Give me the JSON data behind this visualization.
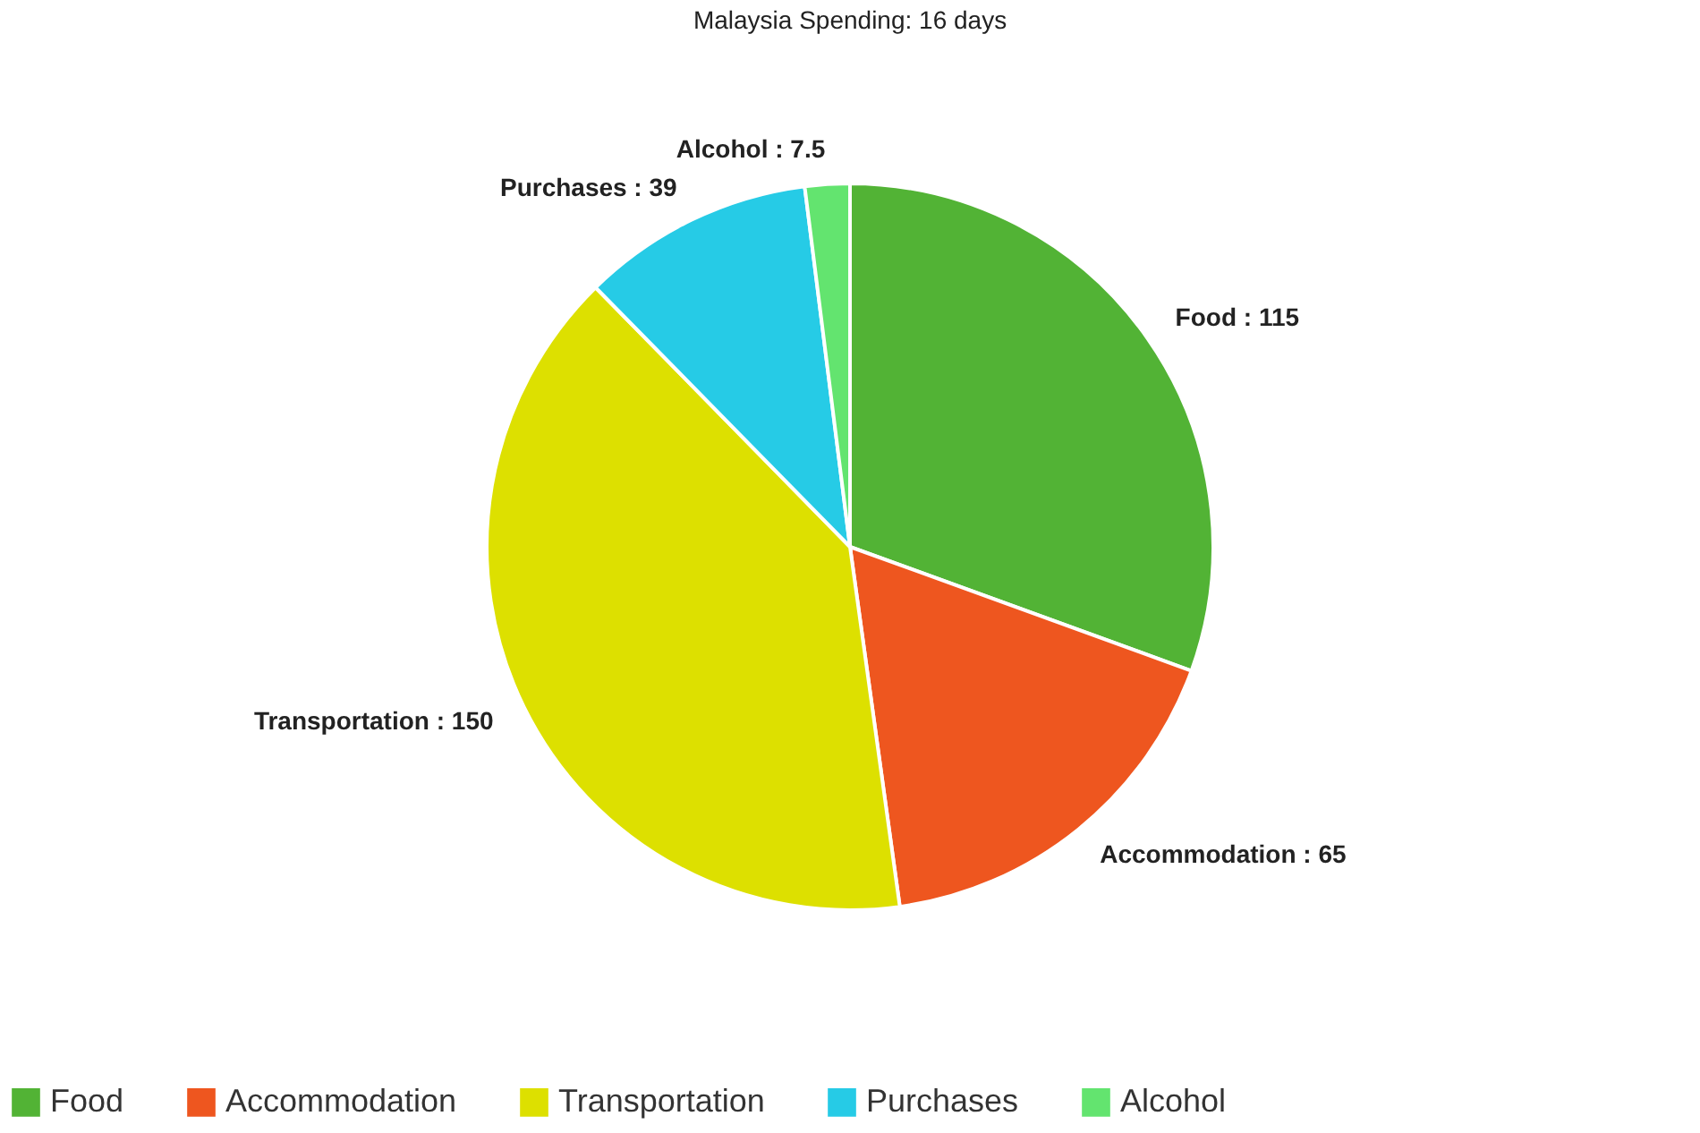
{
  "chart_data": {
    "type": "pie",
    "title": "Malaysia Spending: 16 days",
    "categories": [
      "Food",
      "Accommodation",
      "Transportation",
      "Purchases",
      "Alcohol"
    ],
    "values": [
      115,
      65,
      150,
      39,
      7.5
    ],
    "value_labels": [
      ": 115",
      ": 65",
      ": 150",
      ": 39",
      ": 7.5"
    ],
    "colors": [
      "#52b335",
      "#ee561f",
      "#dde000",
      "#26cbe6",
      "#63e46f"
    ],
    "legend": "bottom"
  }
}
